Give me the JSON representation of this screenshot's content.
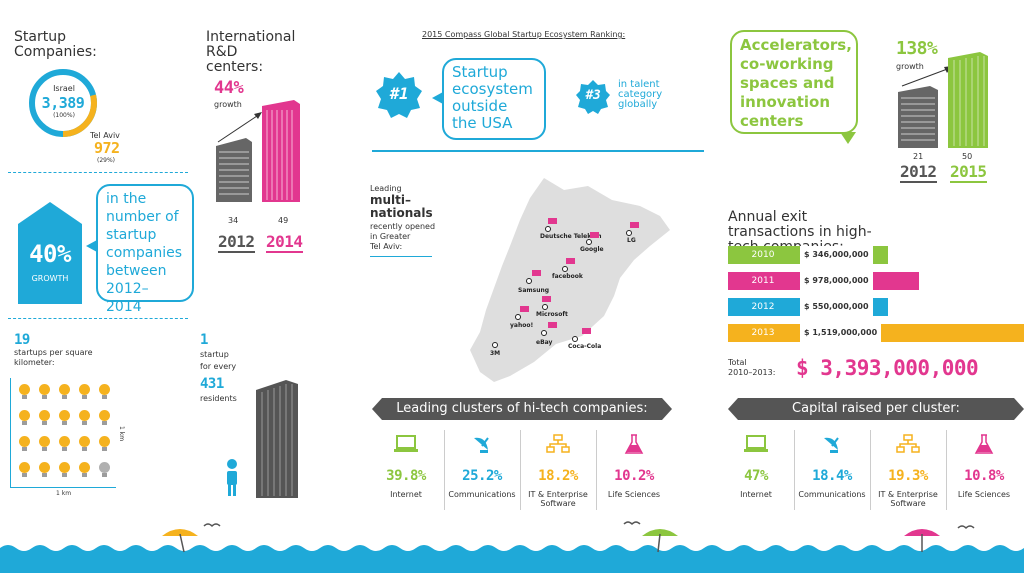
{
  "colors": {
    "cyan": "#1fa9d8",
    "pink": "#e2378f",
    "green": "#8cc63f",
    "orange": "#f5b21e",
    "dark": "#555555"
  },
  "startups": {
    "title": "Startup Companies:",
    "israel_label": "Israel",
    "israel_value": "3,389",
    "israel_pct": "(100%)",
    "telaviv_label": "Tel Aviv",
    "telaviv_value": "972",
    "telaviv_pct": "(29%)",
    "telaviv_share": 0.29
  },
  "rnd": {
    "title": "International R&D centers:",
    "growth_pct": "44%",
    "growth_label": "growth",
    "val_2012": "34",
    "year_2012": "2012",
    "val_2014": "49",
    "year_2014": "2014"
  },
  "growth40": {
    "pct": "40%",
    "label": "GROWTH",
    "bubble_text": "in the number of startup companies between 2012–2014"
  },
  "density": {
    "count": "19",
    "desc": "startups per square kilometer:",
    "side_label": "1 km",
    "bottom_label": "1 km"
  },
  "residents": {
    "count": "1",
    "desc_1": "startup",
    "desc_2": "for every",
    "count_2": "431",
    "desc_3": "residents"
  },
  "ranking": {
    "title": "2015 Compass Global Startup Ecosystem Ranking:",
    "rank1": "#1",
    "rank1_text": "Startup ecosystem outside the USA",
    "rank3": "#3",
    "rank3_text": "in talent category globally"
  },
  "multinationals": {
    "line1": "Leading",
    "line2": "multi–",
    "line3": "nationals",
    "line4": "recently opened",
    "line5": "in Greater",
    "line6": "Tel Aviv:",
    "companies": [
      "Deutsche Telekom",
      "Google",
      "LG",
      "facebook",
      "Samsung",
      "Microsoft",
      "yahoo!",
      "eBay",
      "Coca-Cola",
      "3M"
    ]
  },
  "accelerators": {
    "bubble_text": "Accelerators, co-working spaces and innovation centers",
    "growth_pct": "138%",
    "growth_label": "growth",
    "val_2012": "21",
    "year_2012": "2012",
    "val_2015": "50",
    "year_2015": "2015"
  },
  "exits": {
    "title": "Annual exit transactions in high-tech companies:",
    "bars": [
      {
        "year": "2010",
        "amount": "$ 346,000,000",
        "value": 346000000,
        "color": "#8cc63f"
      },
      {
        "year": "2011",
        "amount": "$ 978,000,000",
        "value": 978000000,
        "color": "#e2378f"
      },
      {
        "year": "2012",
        "amount": "$ 550,000,000",
        "value": 550000000,
        "color": "#1fa9d8"
      },
      {
        "year": "2013",
        "amount": "$ 1,519,000,000",
        "value": 1519000000,
        "color": "#f5b21e"
      }
    ],
    "total_label_1": "Total",
    "total_label_2": "2010–2013:",
    "total_value": "$ 3,393,000,000"
  },
  "clusters": {
    "title": "Leading clusters of hi-tech companies:",
    "items": [
      {
        "value": "39.8%",
        "label": "Internet",
        "icon": "laptop-icon",
        "color": "#8cc63f"
      },
      {
        "value": "25.2%",
        "label": "Communications",
        "icon": "satellite-dish-icon",
        "color": "#1fa9d8"
      },
      {
        "value": "18.2%",
        "label": "IT & Enterprise Software",
        "icon": "network-icon",
        "color": "#f5b21e"
      },
      {
        "value": "10.2%",
        "label": "Life Sciences",
        "icon": "flask-icon",
        "color": "#e2378f"
      }
    ]
  },
  "capital": {
    "title": "Capital raised per cluster:",
    "items": [
      {
        "value": "47%",
        "label": "Internet",
        "icon": "laptop-icon",
        "color": "#8cc63f"
      },
      {
        "value": "18.4%",
        "label": "Communications",
        "icon": "satellite-dish-icon",
        "color": "#1fa9d8"
      },
      {
        "value": "19.3%",
        "label": "IT & Enterprise Software",
        "icon": "network-icon",
        "color": "#f5b21e"
      },
      {
        "value": "10.8%",
        "label": "Life Sciences",
        "icon": "flask-icon",
        "color": "#e2378f"
      }
    ]
  }
}
